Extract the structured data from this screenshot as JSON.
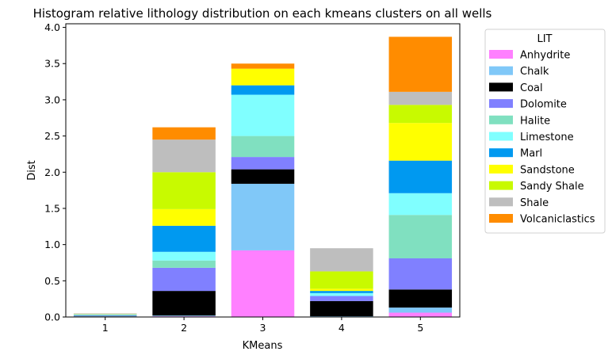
{
  "chart_data": {
    "type": "bar",
    "stacked": true,
    "title": "Histogram relative lithology distribution on each kmeans clusters on all wells",
    "xlabel": "KMeans",
    "ylabel": "Dist",
    "categories": [
      "1",
      "2",
      "3",
      "4",
      "5"
    ],
    "ylim": [
      0,
      4.05
    ],
    "yticks": [
      "0.0",
      "0.5",
      "1.0",
      "1.5",
      "2.0",
      "2.5",
      "3.0",
      "3.5",
      "4.0"
    ],
    "grid": false,
    "legend": {
      "title": "LIT",
      "placement": "outside-right"
    },
    "series": [
      {
        "name": "Anhydrite",
        "color": "#ff80ff",
        "values": [
          0.0,
          0.01,
          0.92,
          0.0,
          0.06
        ]
      },
      {
        "name": "Chalk",
        "color": "#80c8f8",
        "values": [
          0.01,
          0.01,
          0.92,
          0.01,
          0.07
        ]
      },
      {
        "name": "Coal",
        "color": "#000000",
        "values": [
          0.005,
          0.34,
          0.2,
          0.21,
          0.25
        ]
      },
      {
        "name": "Dolomite",
        "color": "#8080ff",
        "values": [
          0.005,
          0.32,
          0.17,
          0.07,
          0.43
        ]
      },
      {
        "name": "Halite",
        "color": "#80e0c0",
        "values": [
          0.0,
          0.1,
          0.29,
          0.0,
          0.6
        ]
      },
      {
        "name": "Limestone",
        "color": "#80ffff",
        "values": [
          0.01,
          0.12,
          0.57,
          0.04,
          0.3
        ]
      },
      {
        "name": "Marl",
        "color": "#0099f0",
        "values": [
          0.005,
          0.36,
          0.13,
          0.03,
          0.45
        ]
      },
      {
        "name": "Sandstone",
        "color": "#ffff00",
        "values": [
          0.005,
          0.23,
          0.23,
          0.03,
          0.52
        ]
      },
      {
        "name": "Sandy Shale",
        "color": "#c8fa00",
        "values": [
          0.0,
          0.51,
          0.0,
          0.24,
          0.25
        ]
      },
      {
        "name": "Shale",
        "color": "#bebebe",
        "values": [
          0.01,
          0.45,
          0.0,
          0.32,
          0.18
        ]
      },
      {
        "name": "Volcaniclastics",
        "color": "#ff8c00",
        "values": [
          0.0,
          0.17,
          0.07,
          0.0,
          0.76
        ]
      }
    ]
  }
}
